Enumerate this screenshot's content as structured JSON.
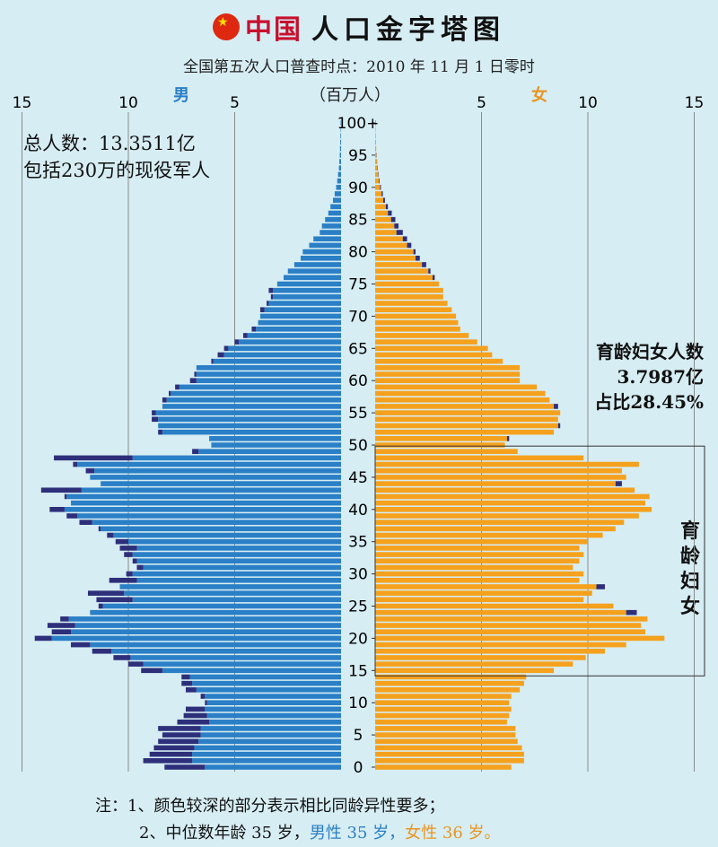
{
  "header": {
    "title_red": "中国",
    "title_black": "人口金字塔图",
    "subtitle": "全国第五次人口普查时点：2010 年 11 月 1 日零时"
  },
  "labels": {
    "male": "男",
    "female": "女",
    "unit": "（百万人）"
  },
  "annotations": {
    "total_line1": "总人数：13.3511亿",
    "total_line2": "包括230万的现役军人",
    "women_line1": "育龄妇女人数",
    "women_line2": "3.7987亿",
    "women_line3": "占比28.45%",
    "box_label": "育龄妇女"
  },
  "notes": {
    "line1": "注：1、颜色较深的部分表示相比同龄异性要多；",
    "line2_prefix": "2、中位数年龄 35 岁，",
    "line2_male": "男性 35 岁，",
    "line2_female": "女性 36 岁。"
  },
  "colors": {
    "male": "#2a7fc6",
    "female": "#f5a11d",
    "excess_dark": "#2e2f7a",
    "grid": "#8a8a8a"
  },
  "chart_data": {
    "type": "bar",
    "orientation": "horizontal-population-pyramid",
    "x_ticks_left": [
      "15",
      "10",
      "5"
    ],
    "x_ticks_right": [
      "5",
      "10",
      "15"
    ],
    "xlim": [
      0,
      15
    ],
    "x_unit": "百万人",
    "y_ticks": [
      "0",
      "5",
      "10",
      "15",
      "20",
      "25",
      "30",
      "35",
      "40",
      "45",
      "50",
      "55",
      "60",
      "65",
      "70",
      "75",
      "80",
      "85",
      "90",
      "95",
      "100+"
    ],
    "ages": [
      0,
      1,
      2,
      3,
      4,
      5,
      6,
      7,
      8,
      9,
      10,
      11,
      12,
      13,
      14,
      15,
      16,
      17,
      18,
      19,
      20,
      21,
      22,
      23,
      24,
      25,
      26,
      27,
      28,
      29,
      30,
      31,
      32,
      33,
      34,
      35,
      36,
      37,
      38,
      39,
      40,
      41,
      42,
      43,
      44,
      45,
      46,
      47,
      48,
      49,
      50,
      51,
      52,
      53,
      54,
      55,
      56,
      57,
      58,
      59,
      60,
      61,
      62,
      63,
      64,
      65,
      66,
      67,
      68,
      69,
      70,
      71,
      72,
      73,
      74,
      75,
      76,
      77,
      78,
      79,
      80,
      81,
      82,
      83,
      84,
      85,
      86,
      87,
      88,
      89,
      90,
      91,
      92,
      93,
      94,
      95,
      96,
      97,
      98,
      99,
      100
    ],
    "series": [
      {
        "name": "男",
        "values": [
          8.3,
          9.3,
          9.0,
          8.8,
          8.6,
          8.4,
          8.6,
          7.7,
          7.4,
          7.3,
          6.4,
          6.6,
          7.3,
          7.5,
          7.5,
          9.4,
          10.0,
          10.7,
          11.7,
          12.7,
          14.4,
          13.6,
          13.8,
          13.2,
          11.8,
          11.4,
          11.5,
          11.9,
          10.4,
          10.9,
          10.1,
          9.6,
          9.8,
          10.2,
          10.4,
          10.6,
          11.0,
          11.4,
          12.3,
          12.9,
          13.7,
          12.7,
          13.0,
          14.1,
          11.3,
          11.8,
          12.0,
          12.6,
          13.5,
          7.0,
          6.1,
          6.2,
          8.6,
          8.6,
          8.9,
          8.9,
          8.4,
          8.4,
          8.1,
          7.8,
          7.1,
          6.9,
          6.8,
          6.1,
          5.8,
          5.5,
          5.0,
          4.6,
          4.2,
          3.9,
          3.8,
          3.8,
          3.5,
          3.3,
          3.4,
          3.0,
          2.7,
          2.5,
          2.2,
          1.9,
          1.8,
          1.5,
          1.3,
          1.0,
          0.9,
          0.75,
          0.6,
          0.5,
          0.38,
          0.3,
          0.23,
          0.18,
          0.14,
          0.1,
          0.08,
          0.06,
          0.05,
          0.04,
          0.03,
          0.02,
          0.02
        ]
      },
      {
        "name": "女",
        "values": [
          6.4,
          7.0,
          7.0,
          6.9,
          6.7,
          6.6,
          6.6,
          6.2,
          6.3,
          6.4,
          6.3,
          6.4,
          6.8,
          7.0,
          7.1,
          8.4,
          9.3,
          9.9,
          10.8,
          11.8,
          13.6,
          12.7,
          12.5,
          12.8,
          12.3,
          11.2,
          9.8,
          10.2,
          10.8,
          9.6,
          9.8,
          9.3,
          9.6,
          9.8,
          9.6,
          10.0,
          10.7,
          11.3,
          11.7,
          12.4,
          13.0,
          12.7,
          12.9,
          12.2,
          11.6,
          11.8,
          11.6,
          12.4,
          9.8,
          6.7,
          6.1,
          6.3,
          8.4,
          8.7,
          8.6,
          8.7,
          8.6,
          8.2,
          8.0,
          7.6,
          6.8,
          6.8,
          6.8,
          6.0,
          5.5,
          5.3,
          4.8,
          4.4,
          4.0,
          3.9,
          3.8,
          3.6,
          3.4,
          3.2,
          3.2,
          3.0,
          2.8,
          2.6,
          2.4,
          2.1,
          1.9,
          1.7,
          1.5,
          1.3,
          1.1,
          0.95,
          0.78,
          0.6,
          0.46,
          0.36,
          0.27,
          0.21,
          0.16,
          0.12,
          0.09,
          0.07,
          0.05,
          0.04,
          0.03,
          0.02,
          0.03
        ]
      }
    ]
  }
}
